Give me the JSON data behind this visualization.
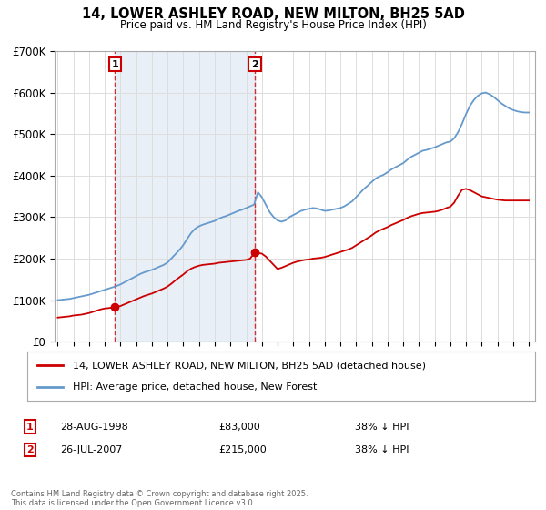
{
  "title": "14, LOWER ASHLEY ROAD, NEW MILTON, BH25 5AD",
  "subtitle": "Price paid vs. HM Land Registry's House Price Index (HPI)",
  "footer": "Contains HM Land Registry data © Crown copyright and database right 2025.\nThis data is licensed under the Open Government Licence v3.0.",
  "legend_line1": "14, LOWER ASHLEY ROAD, NEW MILTON, BH25 5AD (detached house)",
  "legend_line2": "HPI: Average price, detached house, New Forest",
  "transaction1_label": "1",
  "transaction1_date": "28-AUG-1998",
  "transaction1_price": "£83,000",
  "transaction1_hpi": "38% ↓ HPI",
  "transaction1_year": 1998.65,
  "transaction1_value": 83000,
  "transaction2_label": "2",
  "transaction2_date": "26-JUL-2007",
  "transaction2_price": "£215,000",
  "transaction2_hpi": "38% ↓ HPI",
  "transaction2_year": 2007.55,
  "transaction2_value": 215000,
  "red_color": "#cc0000",
  "blue_color": "#6699cc",
  "shade_color": "#ddeeff",
  "marker_box_color": "#cc0000",
  "background_color": "#ffffff",
  "grid_color": "#dddddd",
  "ylim": [
    0,
    700000
  ],
  "yticks": [
    0,
    100000,
    200000,
    300000,
    400000,
    500000,
    600000,
    700000
  ],
  "ytick_labels": [
    "£0",
    "£100K",
    "£200K",
    "£300K",
    "£400K",
    "£500K",
    "£600K",
    "£700K"
  ],
  "xlim_start": 1994.8,
  "xlim_end": 2025.4,
  "hpi_years": [
    1995.0,
    1995.25,
    1995.5,
    1995.75,
    1996.0,
    1996.25,
    1996.5,
    1996.75,
    1997.0,
    1997.25,
    1997.5,
    1997.75,
    1998.0,
    1998.25,
    1998.5,
    1998.75,
    1999.0,
    1999.25,
    1999.5,
    1999.75,
    2000.0,
    2000.25,
    2000.5,
    2000.75,
    2001.0,
    2001.25,
    2001.5,
    2001.75,
    2002.0,
    2002.25,
    2002.5,
    2002.75,
    2003.0,
    2003.25,
    2003.5,
    2003.75,
    2004.0,
    2004.25,
    2004.5,
    2004.75,
    2005.0,
    2005.25,
    2005.5,
    2005.75,
    2006.0,
    2006.25,
    2006.5,
    2006.75,
    2007.0,
    2007.25,
    2007.5,
    2007.75,
    2008.0,
    2008.25,
    2008.5,
    2008.75,
    2009.0,
    2009.25,
    2009.5,
    2009.75,
    2010.0,
    2010.25,
    2010.5,
    2010.75,
    2011.0,
    2011.25,
    2011.5,
    2011.75,
    2012.0,
    2012.25,
    2012.5,
    2012.75,
    2013.0,
    2013.25,
    2013.5,
    2013.75,
    2014.0,
    2014.25,
    2014.5,
    2014.75,
    2015.0,
    2015.25,
    2015.5,
    2015.75,
    2016.0,
    2016.25,
    2016.5,
    2016.75,
    2017.0,
    2017.25,
    2017.5,
    2017.75,
    2018.0,
    2018.25,
    2018.5,
    2018.75,
    2019.0,
    2019.25,
    2019.5,
    2019.75,
    2020.0,
    2020.25,
    2020.5,
    2020.75,
    2021.0,
    2021.25,
    2021.5,
    2021.75,
    2022.0,
    2022.25,
    2022.5,
    2022.75,
    2023.0,
    2023.25,
    2023.5,
    2023.75,
    2024.0,
    2024.25,
    2024.5,
    2024.75,
    2025.0
  ],
  "hpi_values": [
    100000,
    101000,
    102000,
    103000,
    105000,
    107000,
    109000,
    111000,
    113000,
    116000,
    119000,
    122000,
    125000,
    128000,
    131000,
    134000,
    138000,
    143000,
    148000,
    153000,
    158000,
    163000,
    167000,
    170000,
    173000,
    177000,
    181000,
    185000,
    191000,
    201000,
    211000,
    221000,
    233000,
    248000,
    262000,
    272000,
    278000,
    282000,
    285000,
    288000,
    291000,
    296000,
    300000,
    303000,
    307000,
    311000,
    315000,
    318000,
    322000,
    326000,
    330000,
    360000,
    348000,
    330000,
    312000,
    300000,
    292000,
    289000,
    292000,
    300000,
    305000,
    310000,
    315000,
    318000,
    320000,
    322000,
    321000,
    318000,
    315000,
    316000,
    318000,
    320000,
    322000,
    326000,
    332000,
    338000,
    348000,
    358000,
    368000,
    376000,
    385000,
    393000,
    398000,
    402000,
    408000,
    415000,
    420000,
    425000,
    430000,
    438000,
    445000,
    450000,
    455000,
    460000,
    462000,
    465000,
    468000,
    472000,
    476000,
    480000,
    482000,
    490000,
    505000,
    525000,
    548000,
    568000,
    582000,
    592000,
    598000,
    600000,
    596000,
    590000,
    582000,
    574000,
    568000,
    562000,
    558000,
    555000,
    553000,
    552000,
    552000
  ],
  "red_years": [
    1995.0,
    1995.25,
    1995.5,
    1995.75,
    1996.0,
    1996.25,
    1996.5,
    1996.75,
    1997.0,
    1997.25,
    1997.5,
    1997.75,
    1998.0,
    1998.25,
    1998.5,
    1998.65,
    1999.0,
    1999.25,
    1999.5,
    1999.75,
    2000.0,
    2000.25,
    2000.5,
    2000.75,
    2001.0,
    2001.25,
    2001.5,
    2001.75,
    2002.0,
    2002.25,
    2002.5,
    2002.75,
    2003.0,
    2003.25,
    2003.5,
    2003.75,
    2004.0,
    2004.25,
    2004.5,
    2004.75,
    2005.0,
    2005.25,
    2005.5,
    2005.75,
    2006.0,
    2006.25,
    2006.5,
    2006.75,
    2007.0,
    2007.25,
    2007.55,
    2008.0,
    2008.25,
    2008.5,
    2008.75,
    2009.0,
    2009.25,
    2009.5,
    2009.75,
    2010.0,
    2010.25,
    2010.5,
    2010.75,
    2011.0,
    2011.25,
    2011.5,
    2011.75,
    2012.0,
    2012.25,
    2012.5,
    2012.75,
    2013.0,
    2013.25,
    2013.5,
    2013.75,
    2014.0,
    2014.25,
    2014.5,
    2014.75,
    2015.0,
    2015.25,
    2015.5,
    2015.75,
    2016.0,
    2016.25,
    2016.5,
    2016.75,
    2017.0,
    2017.25,
    2017.5,
    2017.75,
    2018.0,
    2018.25,
    2018.5,
    2018.75,
    2019.0,
    2019.25,
    2019.5,
    2019.75,
    2020.0,
    2020.25,
    2020.5,
    2020.75,
    2021.0,
    2021.25,
    2021.5,
    2021.75,
    2022.0,
    2022.25,
    2022.5,
    2022.75,
    2023.0,
    2023.25,
    2023.5,
    2023.75,
    2024.0,
    2024.25,
    2024.5,
    2024.75,
    2025.0
  ],
  "red_values": [
    58000,
    59000,
    60000,
    61000,
    63000,
    64000,
    65000,
    67000,
    69000,
    72000,
    75000,
    78000,
    80000,
    81000,
    82000,
    83000,
    86000,
    90000,
    94000,
    98000,
    102000,
    106000,
    110000,
    113000,
    116000,
    120000,
    124000,
    128000,
    133000,
    140000,
    148000,
    155000,
    162000,
    170000,
    176000,
    180000,
    183000,
    185000,
    186000,
    187000,
    188000,
    190000,
    191000,
    192000,
    193000,
    194000,
    195000,
    196000,
    197000,
    200000,
    215000,
    212000,
    205000,
    195000,
    185000,
    175000,
    178000,
    182000,
    186000,
    190000,
    193000,
    195000,
    197000,
    198000,
    200000,
    201000,
    202000,
    204000,
    207000,
    210000,
    213000,
    216000,
    219000,
    222000,
    226000,
    232000,
    238000,
    244000,
    250000,
    256000,
    263000,
    268000,
    272000,
    276000,
    281000,
    285000,
    289000,
    293000,
    298000,
    302000,
    305000,
    308000,
    310000,
    311000,
    312000,
    313000,
    315000,
    318000,
    322000,
    325000,
    335000,
    352000,
    366000,
    368000,
    365000,
    360000,
    355000,
    350000,
    348000,
    346000,
    344000,
    342000,
    341000,
    340000,
    340000,
    340000,
    340000,
    340000,
    340000,
    340000
  ]
}
